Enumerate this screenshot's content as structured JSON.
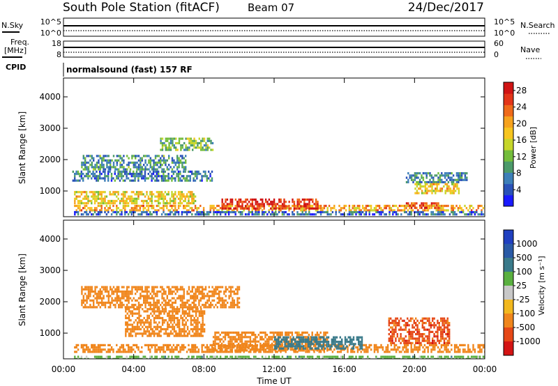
{
  "header": {
    "station": "South Pole Station (fitACF)",
    "beam": "Beam 07",
    "date": "24/Dec/2017"
  },
  "top_panels": {
    "nsky_label": "N.Sky",
    "nsky_ticks": [
      "10^5",
      "10^0"
    ],
    "nsearch_label": "N.Search",
    "nsearch_ticks": [
      "10^5",
      "10^0"
    ],
    "freq_label_1": "Freq.",
    "freq_label_2": "[MHz]",
    "freq_ticks": [
      "18",
      "8"
    ],
    "nave_label": "Nave",
    "nave_ticks": [
      "60",
      "0"
    ],
    "cpid_label": "CPID",
    "cpid_text": "normalsound (fast) 157 RF"
  },
  "chart_data": [
    {
      "type": "heatmap",
      "title": "",
      "xlabel": "",
      "ylabel": "Slant Range [km]",
      "x_ticks": [
        "00:00",
        "04:00",
        "08:00",
        "12:00",
        "16:00",
        "20:00",
        "00:00"
      ],
      "y_ticks": [
        "1000",
        "2000",
        "3000",
        "4000"
      ],
      "ylim": [
        180,
        4600
      ],
      "xlim_hours": [
        0,
        24
      ],
      "colorbar": {
        "label": "Power [dB]",
        "ticks": [
          "4",
          "8",
          "12",
          "16",
          "20",
          "24",
          "28"
        ],
        "range": [
          0,
          30
        ],
        "colors": [
          "#1a1aff",
          "#2a52b8",
          "#3d7fb8",
          "#4c9a6a",
          "#74bd3c",
          "#c6d62a",
          "#f7c51f",
          "#f6a21d",
          "#ef6a1a",
          "#e33519",
          "#d01414"
        ]
      },
      "regions": [
        {
          "h": [
            0.6,
            24
          ],
          "r": [
            400,
            560
          ],
          "v": 20
        },
        {
          "h": [
            0.6,
            24
          ],
          "r": [
            280,
            360
          ],
          "v": 6
        },
        {
          "h": [
            0.6,
            7.5
          ],
          "r": [
            600,
            1000
          ],
          "v": 17
        },
        {
          "h": [
            0.5,
            8.5
          ],
          "r": [
            1350,
            1650
          ],
          "v": 7
        },
        {
          "h": [
            9.0,
            14.5
          ],
          "r": [
            420,
            760
          ],
          "v": 27
        },
        {
          "h": [
            19.5,
            21.5
          ],
          "r": [
            460,
            640
          ],
          "v": 24
        },
        {
          "h": [
            19.5,
            23.0
          ],
          "r": [
            1300,
            1600
          ],
          "v": 8
        },
        {
          "h": [
            20.0,
            22.5
          ],
          "r": [
            900,
            1250
          ],
          "v": 18
        },
        {
          "h": [
            1.0,
            7.0
          ],
          "r": [
            1700,
            2150
          ],
          "v": 9
        },
        {
          "h": [
            5.5,
            8.5
          ],
          "r": [
            2300,
            2700
          ],
          "v": 12
        }
      ]
    },
    {
      "type": "heatmap",
      "title": "",
      "xlabel": "Time UT",
      "ylabel": "Slant Range [km]",
      "x_ticks": [
        "00:00",
        "04:00",
        "08:00",
        "12:00",
        "16:00",
        "20:00",
        "00:00"
      ],
      "y_ticks": [
        "1000",
        "2000",
        "3000",
        "4000"
      ],
      "ylim": [
        180,
        4600
      ],
      "xlim_hours": [
        0,
        24
      ],
      "colorbar": {
        "label": "Velocity [m s⁻¹]",
        "ticks": [
          "1000",
          "500",
          "100",
          "25",
          "-25",
          "-100",
          "-500",
          "-1000"
        ],
        "colors": [
          "#2040c0",
          "#2a5aa6",
          "#3a7a8a",
          "#5ab040",
          "#c8c8c8",
          "#f2b81e",
          "#f0861c",
          "#e64817",
          "#d41414"
        ]
      },
      "regions": [
        {
          "h": [
            0.6,
            24
          ],
          "r": [
            420,
            650
          ],
          "v": -250
        },
        {
          "h": [
            8.5,
            15.0
          ],
          "r": [
            420,
            1050
          ],
          "v": -250
        },
        {
          "h": [
            3.5,
            8.0
          ],
          "r": [
            900,
            1800
          ],
          "v": -250
        },
        {
          "h": [
            18.5,
            22.0
          ],
          "r": [
            700,
            1500
          ],
          "v": -700
        },
        {
          "h": [
            1.0,
            10.0
          ],
          "r": [
            1800,
            2500
          ],
          "v": -300
        },
        {
          "h": [
            12.0,
            17.0
          ],
          "r": [
            500,
            900
          ],
          "v": 300
        },
        {
          "h": [
            0.6,
            24
          ],
          "r": [
            180,
            280
          ],
          "v": 60
        }
      ]
    }
  ]
}
